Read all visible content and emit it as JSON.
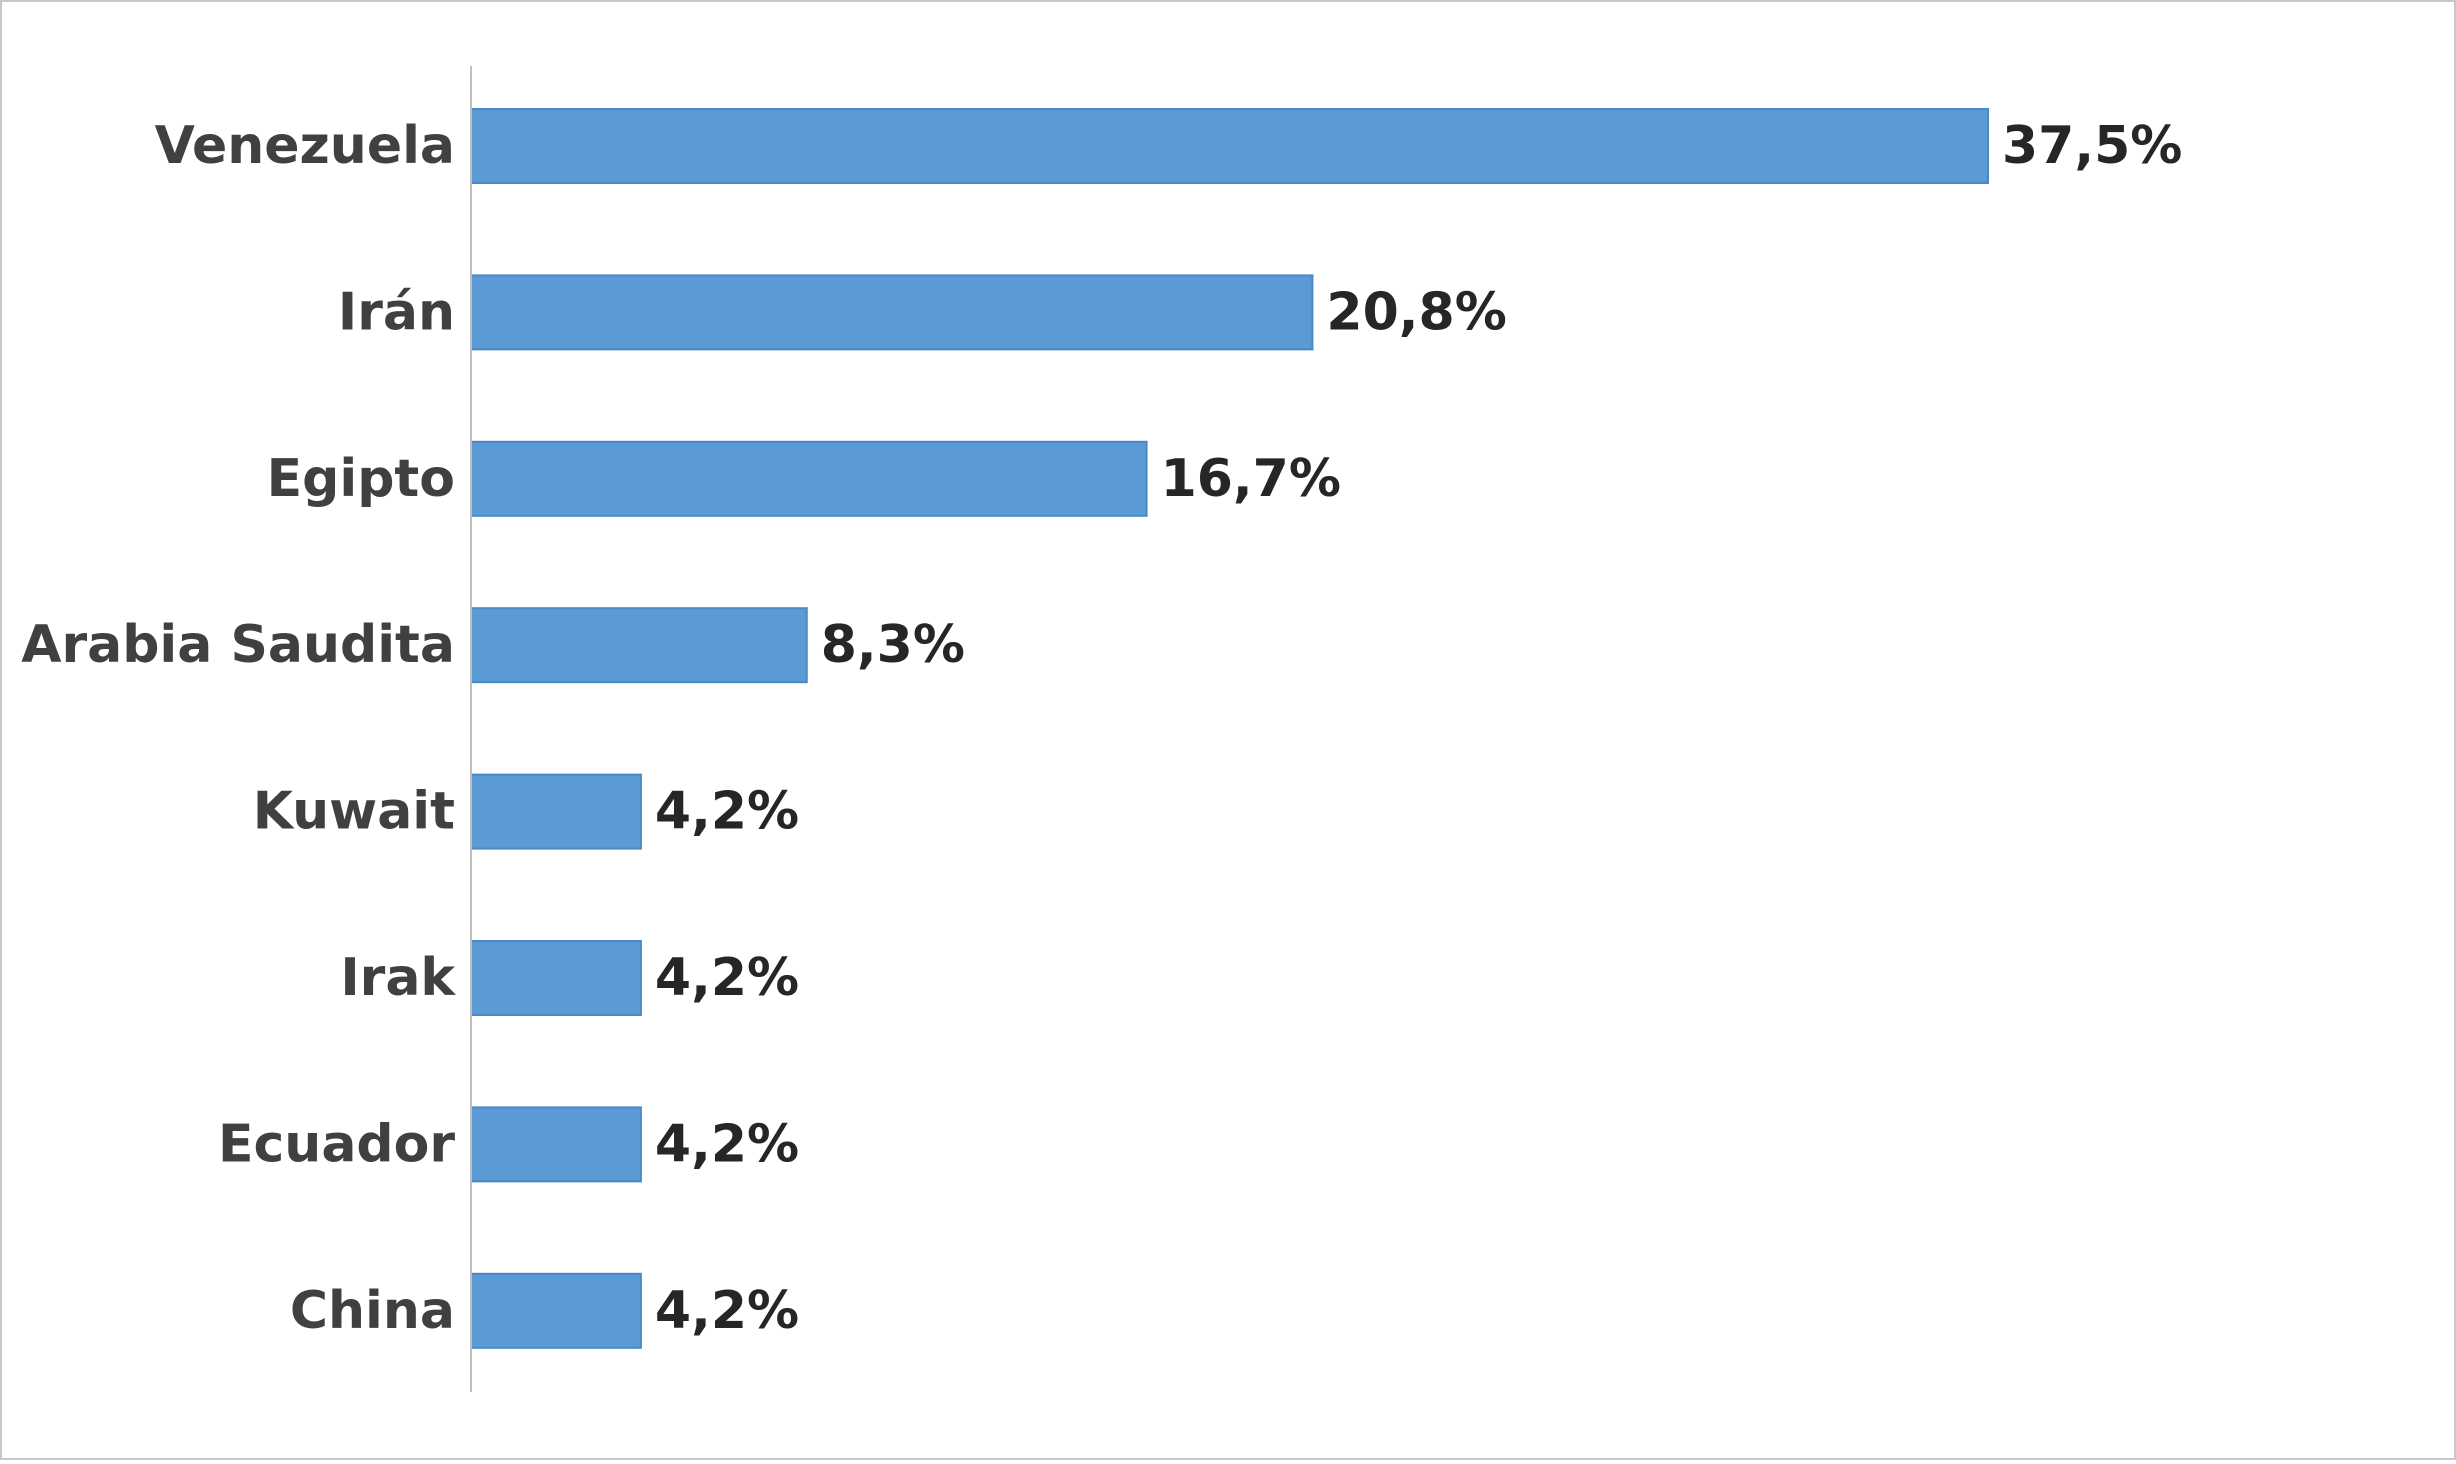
{
  "chart_data": {
    "type": "bar",
    "orientation": "horizontal",
    "categories": [
      "Venezuela",
      "Irán",
      "Egipto",
      "Arabia Saudita",
      "Kuwait",
      "Irak",
      "Ecuador",
      "China"
    ],
    "values": [
      37.5,
      20.8,
      16.7,
      8.3,
      4.2,
      4.2,
      4.2,
      4.2
    ],
    "value_labels": [
      "37,5%",
      "20,8%",
      "16,7%",
      "8,3%",
      "4,2%",
      "4,2%",
      "4,2%",
      "4,2%"
    ],
    "title": "",
    "xlabel": "",
    "ylabel": "",
    "xlim": [
      0,
      40
    ],
    "grid": false,
    "legend": "none",
    "colors": {
      "bar": "#5b9bd5",
      "bar_edge": "#4a89c4",
      "axis": "#bfbfbf"
    }
  }
}
